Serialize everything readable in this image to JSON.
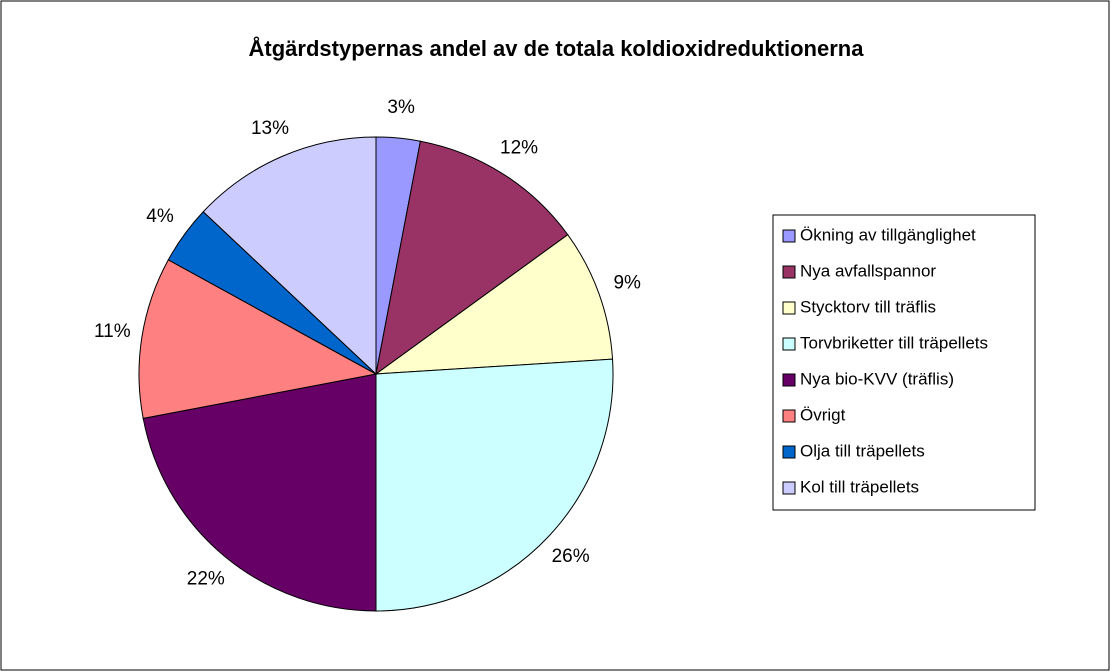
{
  "chart_data": {
    "type": "pie",
    "title": "Åtgärdstypernas andel av de totala koldioxidreduktionerna",
    "categories": [
      "Ökning av tillgänglighet",
      "Nya avfallspannor",
      "Stycktorv till träflis",
      "Torvbriketter till träpellets",
      "Nya bio-KVV (träflis)",
      "Övrigt",
      "Olja till träpellets",
      "Kol till träpellets"
    ],
    "values": [
      3,
      12,
      9,
      26,
      22,
      11,
      4,
      13
    ],
    "value_labels": [
      "3%",
      "12%",
      "9%",
      "26%",
      "22%",
      "11%",
      "4%",
      "13%"
    ],
    "colors": [
      "#9999ff",
      "#993366",
      "#ffffcc",
      "#ccffff",
      "#660066",
      "#ff8080",
      "#0066cc",
      "#ccccff"
    ],
    "legend": "right"
  }
}
